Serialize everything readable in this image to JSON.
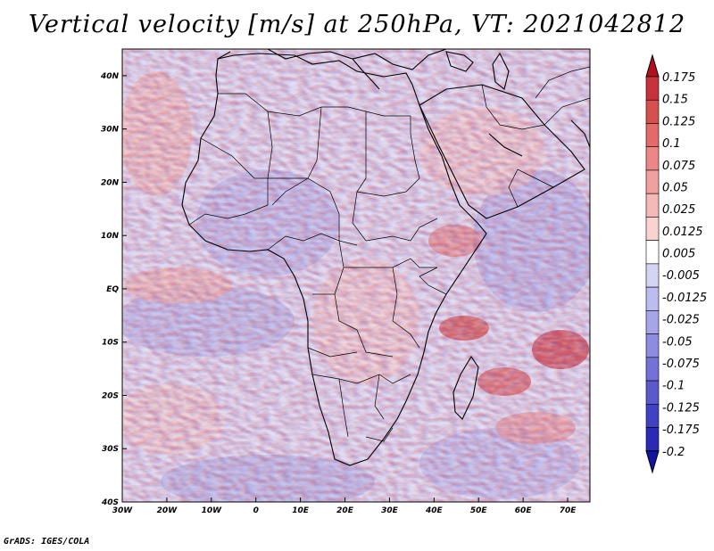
{
  "title": "Vertical velocity [m/s] at 250hPa, VT: 2021042812",
  "footer": "GrADS: IGES/COLA",
  "map": {
    "variable": "Vertical velocity",
    "units": "m/s",
    "level": "250hPa",
    "valid_time": "2021042812",
    "region": "Africa",
    "lon_range": [
      -30,
      75
    ],
    "lat_range": [
      -40,
      45
    ],
    "lat_labels": [
      "40N",
      "30N",
      "20N",
      "10N",
      "EQ",
      "10S",
      "20S",
      "30S",
      "40S"
    ],
    "lon_labels": [
      "30W",
      "20W",
      "10W",
      "0",
      "10E",
      "20E",
      "30E",
      "40E",
      "50E",
      "60E",
      "70E"
    ]
  },
  "colorbar": {
    "labels": [
      "0.175",
      "0.15",
      "0.125",
      "0.1",
      "0.075",
      "0.05",
      "0.025",
      "0.0125",
      "0.005",
      "-0.005",
      "-0.0125",
      "-0.025",
      "-0.05",
      "-0.075",
      "-0.1",
      "-0.125",
      "-0.175",
      "-0.2"
    ],
    "colors": [
      "#b40f1e",
      "#c8323a",
      "#d75050",
      "#e26a68",
      "#eb8787",
      "#f0a09e",
      "#f5b9b7",
      "#fad2d0",
      "#ffffff",
      "#d4d4f5",
      "#bcbcf0",
      "#a5a5e8",
      "#8c8ce0",
      "#7373d7",
      "#5a5acd",
      "#4141c3",
      "#2a2ab5",
      "#1414a0"
    ]
  }
}
